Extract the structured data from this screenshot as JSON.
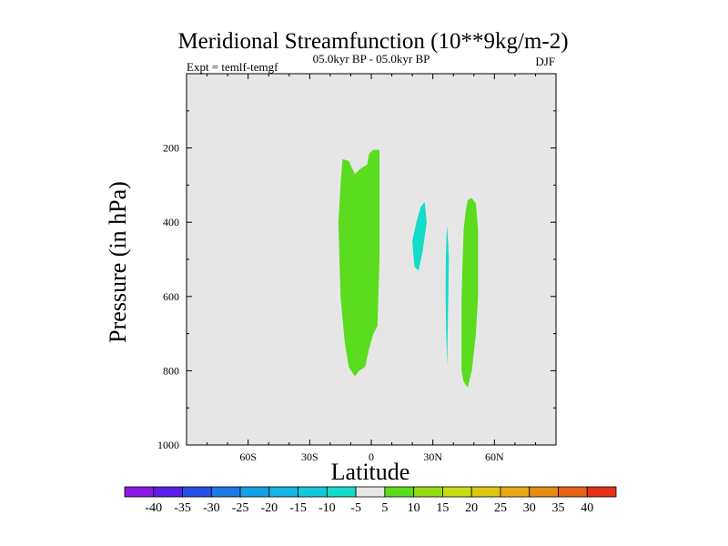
{
  "chart_data": {
    "type": "contour",
    "title": "Meridional Streamfunction (10**9kg/m-2)",
    "left_label": "Expt = temlf-temgf",
    "center_label": "05.0kyr BP - 05.0kyr BP",
    "right_label": "DJF",
    "xlabel": "Latitude",
    "ylabel": "Pressure (in hPa)",
    "xlim": [
      -90,
      90
    ],
    "ylim": [
      0,
      1000
    ],
    "x_ticks": [
      {
        "value": -60,
        "label": "60S"
      },
      {
        "value": -30,
        "label": "30S"
      },
      {
        "value": 0,
        "label": "0"
      },
      {
        "value": 30,
        "label": "30N"
      },
      {
        "value": 60,
        "label": "60N"
      }
    ],
    "y_ticks": [
      {
        "value": 200,
        "label": "200"
      },
      {
        "value": 400,
        "label": "400"
      },
      {
        "value": 600,
        "label": "600"
      },
      {
        "value": 800,
        "label": "800"
      },
      {
        "value": 1000,
        "label": "1000"
      }
    ],
    "background_color": "#e6e6e6",
    "regions": [
      {
        "name": "positive-5-10-cell-a",
        "level": "5 to 10",
        "color": "#5bdc1e",
        "points": [
          [
            -14,
            230
          ],
          [
            -11,
            235
          ],
          [
            -8,
            270
          ],
          [
            -5,
            255
          ],
          [
            -2,
            245
          ],
          [
            -1,
            215
          ],
          [
            1,
            205
          ],
          [
            4,
            205
          ],
          [
            4,
            280
          ],
          [
            4,
            500
          ],
          [
            3,
            680
          ],
          [
            1,
            700
          ],
          [
            -1,
            740
          ],
          [
            -3,
            790
          ],
          [
            -6,
            800
          ],
          [
            -8,
            815
          ],
          [
            -11,
            790
          ],
          [
            -13,
            720
          ],
          [
            -15,
            600
          ],
          [
            -16,
            400
          ],
          [
            -15,
            300
          ],
          [
            -14,
            230
          ]
        ]
      },
      {
        "name": "positive-5-10-cell-b",
        "level": "5 to 10",
        "color": "#5bdc1e",
        "points": [
          [
            49,
            335
          ],
          [
            51,
            350
          ],
          [
            52,
            420
          ],
          [
            52,
            600
          ],
          [
            51,
            700
          ],
          [
            49,
            800
          ],
          [
            47,
            845
          ],
          [
            45,
            830
          ],
          [
            44,
            800
          ],
          [
            44,
            600
          ],
          [
            45,
            420
          ],
          [
            46,
            370
          ],
          [
            47,
            340
          ],
          [
            49,
            335
          ]
        ]
      },
      {
        "name": "negative-5-10-cell-a",
        "level": "-10 to -5",
        "color": "#14dcc8",
        "points": [
          [
            26,
            345
          ],
          [
            27,
            400
          ],
          [
            25,
            480
          ],
          [
            23,
            530
          ],
          [
            21,
            520
          ],
          [
            20,
            450
          ],
          [
            22,
            400
          ],
          [
            24,
            360
          ],
          [
            26,
            345
          ]
        ]
      },
      {
        "name": "negative-5-10-cell-b",
        "level": "-10 to -5",
        "color": "#14dcc8",
        "points": [
          [
            37,
            410
          ],
          [
            37.8,
            500
          ],
          [
            37.5,
            600
          ],
          [
            37.2,
            700
          ],
          [
            37,
            790
          ],
          [
            36.5,
            700
          ],
          [
            36.2,
            600
          ],
          [
            36.3,
            500
          ],
          [
            36.6,
            440
          ],
          [
            37,
            410
          ]
        ]
      }
    ],
    "colorbar": {
      "labels": [
        "-40",
        "-35",
        "-30",
        "-25",
        "-20",
        "-15",
        "-10",
        "-5",
        "5",
        "10",
        "15",
        "20",
        "25",
        "30",
        "35",
        "40"
      ],
      "colors": [
        "#8a19e6",
        "#5a1ee6",
        "#2850e6",
        "#1e78e6",
        "#14a0e6",
        "#14b4e6",
        "#14c8dc",
        "#14dcc8",
        "#e6e6e6",
        "#5bdc1e",
        "#96dc14",
        "#c8dc14",
        "#dcc814",
        "#e6a814",
        "#e68c14",
        "#e66414",
        "#e63214"
      ]
    }
  }
}
